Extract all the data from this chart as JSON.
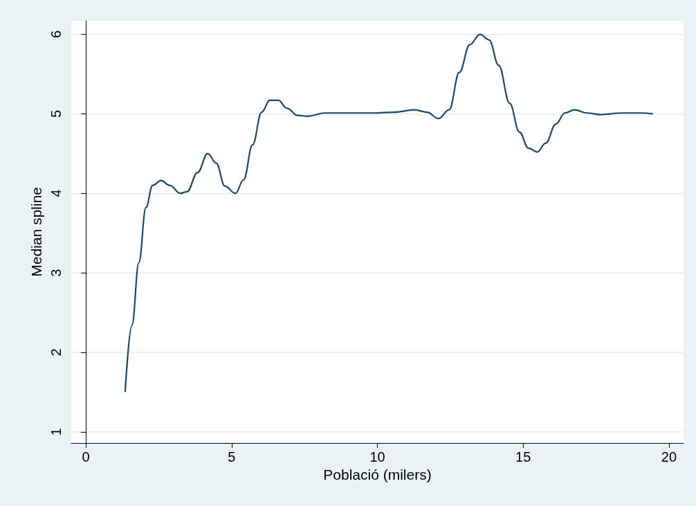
{
  "chart_data": {
    "type": "line",
    "xlabel": "Població (milers)",
    "ylabel": "Median spline",
    "color": "#1a476f",
    "x": [
      1.35,
      1.58,
      1.82,
      2.06,
      2.29,
      2.58,
      2.88,
      3.24,
      3.47,
      3.83,
      4.18,
      4.47,
      4.77,
      5.13,
      5.41,
      5.72,
      6.03,
      6.31,
      6.6,
      6.9,
      7.26,
      7.61,
      8.2,
      8.91,
      9.86,
      10.57,
      11.28,
      11.7,
      12.1,
      12.46,
      12.81,
      13.17,
      13.52,
      13.83,
      14.16,
      14.54,
      14.87,
      15.18,
      15.48,
      15.77,
      16.12,
      16.43,
      16.76,
      17.19,
      17.66,
      18.37,
      19.08,
      19.43
    ],
    "values": [
      1.51,
      2.34,
      3.13,
      3.82,
      4.1,
      4.16,
      4.1,
      4.0,
      4.02,
      4.26,
      4.5,
      4.38,
      4.09,
      4.0,
      4.17,
      4.61,
      5.02,
      5.17,
      5.17,
      5.07,
      4.98,
      4.97,
      5.01,
      5.01,
      5.01,
      5.02,
      5.05,
      5.02,
      4.94,
      5.05,
      5.52,
      5.87,
      6.0,
      5.93,
      5.61,
      5.13,
      4.77,
      4.57,
      4.52,
      4.63,
      4.87,
      5.01,
      5.05,
      5.01,
      4.99,
      5.01,
      5.01,
      5.0
    ],
    "xlim": [
      -0.5,
      20.5
    ],
    "xticks": [
      0,
      5,
      10,
      15,
      20
    ],
    "ylim": [
      0.86,
      6.17
    ],
    "yticks": [
      1,
      2,
      3,
      4,
      5,
      6
    ],
    "grid": "y"
  }
}
